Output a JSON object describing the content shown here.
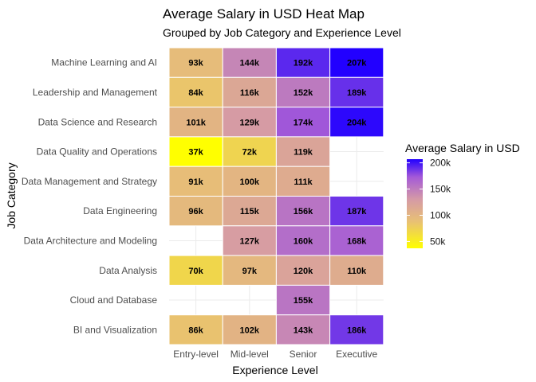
{
  "chart_data": {
    "type": "heatmap",
    "title": "Average Salary in USD Heat Map",
    "subtitle": "Grouped by Job Category and Experience Level",
    "xlabel": "Experience Level",
    "ylabel": "Job Category",
    "x_categories": [
      "Entry-level",
      "Mid-level",
      "Senior",
      "Executive"
    ],
    "y_categories": [
      "Machine Learning and AI",
      "Leadership and Management",
      "Data Science and Research",
      "Data Quality and Operations",
      "Data Management and Strategy",
      "Data Engineering",
      "Data Architecture and Modeling",
      "Data Analysis",
      "Cloud and Database",
      "BI and Visualization"
    ],
    "cells": [
      {
        "x": "Entry-level",
        "y": "Machine Learning and AI",
        "value": 93,
        "label": "93k"
      },
      {
        "x": "Mid-level",
        "y": "Machine Learning and AI",
        "value": 144,
        "label": "144k"
      },
      {
        "x": "Senior",
        "y": "Machine Learning and AI",
        "value": 192,
        "label": "192k"
      },
      {
        "x": "Executive",
        "y": "Machine Learning and AI",
        "value": 207,
        "label": "207k"
      },
      {
        "x": "Entry-level",
        "y": "Leadership and Management",
        "value": 84,
        "label": "84k"
      },
      {
        "x": "Mid-level",
        "y": "Leadership and Management",
        "value": 116,
        "label": "116k"
      },
      {
        "x": "Senior",
        "y": "Leadership and Management",
        "value": 152,
        "label": "152k"
      },
      {
        "x": "Executive",
        "y": "Leadership and Management",
        "value": 189,
        "label": "189k"
      },
      {
        "x": "Entry-level",
        "y": "Data Science and Research",
        "value": 101,
        "label": "101k"
      },
      {
        "x": "Mid-level",
        "y": "Data Science and Research",
        "value": 129,
        "label": "129k"
      },
      {
        "x": "Senior",
        "y": "Data Science and Research",
        "value": 174,
        "label": "174k"
      },
      {
        "x": "Executive",
        "y": "Data Science and Research",
        "value": 204,
        "label": "204k"
      },
      {
        "x": "Entry-level",
        "y": "Data Quality and Operations",
        "value": 37,
        "label": "37k"
      },
      {
        "x": "Mid-level",
        "y": "Data Quality and Operations",
        "value": 72,
        "label": "72k"
      },
      {
        "x": "Senior",
        "y": "Data Quality and Operations",
        "value": 119,
        "label": "119k"
      },
      {
        "x": "Entry-level",
        "y": "Data Management and Strategy",
        "value": 91,
        "label": "91k"
      },
      {
        "x": "Mid-level",
        "y": "Data Management and Strategy",
        "value": 100,
        "label": "100k"
      },
      {
        "x": "Senior",
        "y": "Data Management and Strategy",
        "value": 111,
        "label": "111k"
      },
      {
        "x": "Entry-level",
        "y": "Data Engineering",
        "value": 96,
        "label": "96k"
      },
      {
        "x": "Mid-level",
        "y": "Data Engineering",
        "value": 115,
        "label": "115k"
      },
      {
        "x": "Senior",
        "y": "Data Engineering",
        "value": 156,
        "label": "156k"
      },
      {
        "x": "Executive",
        "y": "Data Engineering",
        "value": 187,
        "label": "187k"
      },
      {
        "x": "Mid-level",
        "y": "Data Architecture and Modeling",
        "value": 127,
        "label": "127k"
      },
      {
        "x": "Senior",
        "y": "Data Architecture and Modeling",
        "value": 160,
        "label": "160k"
      },
      {
        "x": "Executive",
        "y": "Data Architecture and Modeling",
        "value": 168,
        "label": "168k"
      },
      {
        "x": "Entry-level",
        "y": "Data Analysis",
        "value": 70,
        "label": "70k"
      },
      {
        "x": "Mid-level",
        "y": "Data Analysis",
        "value": 97,
        "label": "97k"
      },
      {
        "x": "Senior",
        "y": "Data Analysis",
        "value": 120,
        "label": "120k"
      },
      {
        "x": "Executive",
        "y": "Data Analysis",
        "value": 110,
        "label": "110k"
      },
      {
        "x": "Senior",
        "y": "Cloud and Database",
        "value": 155,
        "label": "155k"
      },
      {
        "x": "Entry-level",
        "y": "BI and Visualization",
        "value": 86,
        "label": "86k"
      },
      {
        "x": "Mid-level",
        "y": "BI and Visualization",
        "value": 102,
        "label": "102k"
      },
      {
        "x": "Senior",
        "y": "BI and Visualization",
        "value": 143,
        "label": "143k"
      },
      {
        "x": "Executive",
        "y": "BI and Visualization",
        "value": 186,
        "label": "186k"
      }
    ],
    "color_scale": {
      "low_color": "#ffff00",
      "mid_color": "#d89aa3",
      "high_color": "#2200ff",
      "domain": [
        37,
        207
      ]
    },
    "legend": {
      "title": "Average Salary in USD",
      "position": "right",
      "ticks": [
        {
          "value": 50,
          "label": "50k"
        },
        {
          "value": 100,
          "label": "100k"
        },
        {
          "value": 150,
          "label": "150k"
        },
        {
          "value": 200,
          "label": "200k"
        }
      ]
    },
    "grid": true
  }
}
